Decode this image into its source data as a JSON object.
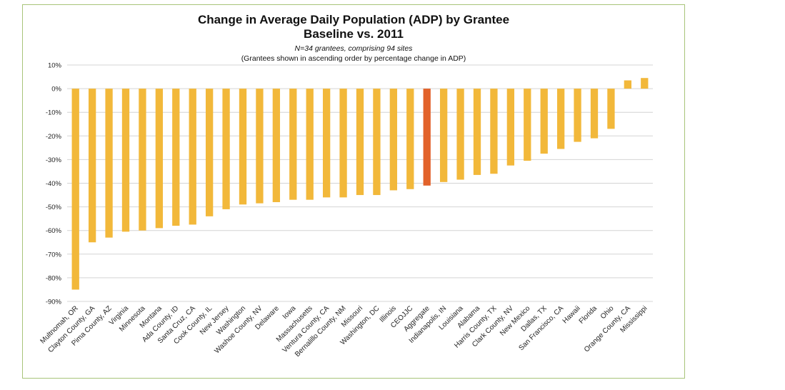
{
  "chart_data": {
    "type": "bar",
    "title": "Change in Average Daily Population (ADP) by Grantee",
    "subtitle": "Baseline vs. 2011",
    "note_line1": "N=34 grantees, comprising 94 sites",
    "note_line2": "(Grantees shown in ascending order by percentage change in ADP)",
    "xlabel": "",
    "ylabel": "",
    "ylim": [
      -90,
      10
    ],
    "yticks": [
      10,
      0,
      -10,
      -20,
      -30,
      -40,
      -50,
      -60,
      -70,
      -80,
      -90
    ],
    "ytick_labels": [
      "10%",
      "0%",
      "-10%",
      "-20%",
      "-30%",
      "-40%",
      "-50%",
      "-60%",
      "-70%",
      "-80%",
      "-90%"
    ],
    "grid": true,
    "legend": "none",
    "categories": [
      "Multnomah, OR",
      "Clayton County, GA",
      "Pima County, AZ",
      "Virginia",
      "Minnesota",
      "Montana",
      "Ada County, ID",
      "Santa Cruz, CA",
      "Cook County, IL",
      "New Jersey",
      "Washington",
      "Washoe County, NV",
      "Delaware",
      "Iowa",
      "Massachusetts",
      "Ventura County, CA",
      "Bernalillo County, NM",
      "Missouri",
      "Washington, DC",
      "Illinois",
      "CEOJJC",
      "Aggregate",
      "Indianapolis, IN",
      "Louisiana",
      "Alabama",
      "Harris County, TX",
      "Clark County, NV",
      "New Mexico",
      "Dallas, TX",
      "San Francisco, CA",
      "Hawaii",
      "Florida",
      "Ohio",
      "Orange County, CA",
      "Mississippi"
    ],
    "values": [
      -85,
      -65,
      -63,
      -60.5,
      -60,
      -59,
      -58,
      -57.5,
      -54,
      -51,
      -49,
      -48.5,
      -48,
      -47,
      -47,
      -46,
      -46,
      -45,
      -45,
      -43,
      -42.5,
      -41,
      -39.5,
      -38.5,
      -36.5,
      -36,
      -32.5,
      -30.5,
      -27.5,
      -25.5,
      -22.5,
      -21,
      -17,
      3.5,
      4.5
    ],
    "colors": {
      "bar": "#f2b83a",
      "highlight": "#e2622a",
      "highlight_category": "Aggregate",
      "grid": "#d4d4d4",
      "frame": "#a8c47a"
    }
  }
}
